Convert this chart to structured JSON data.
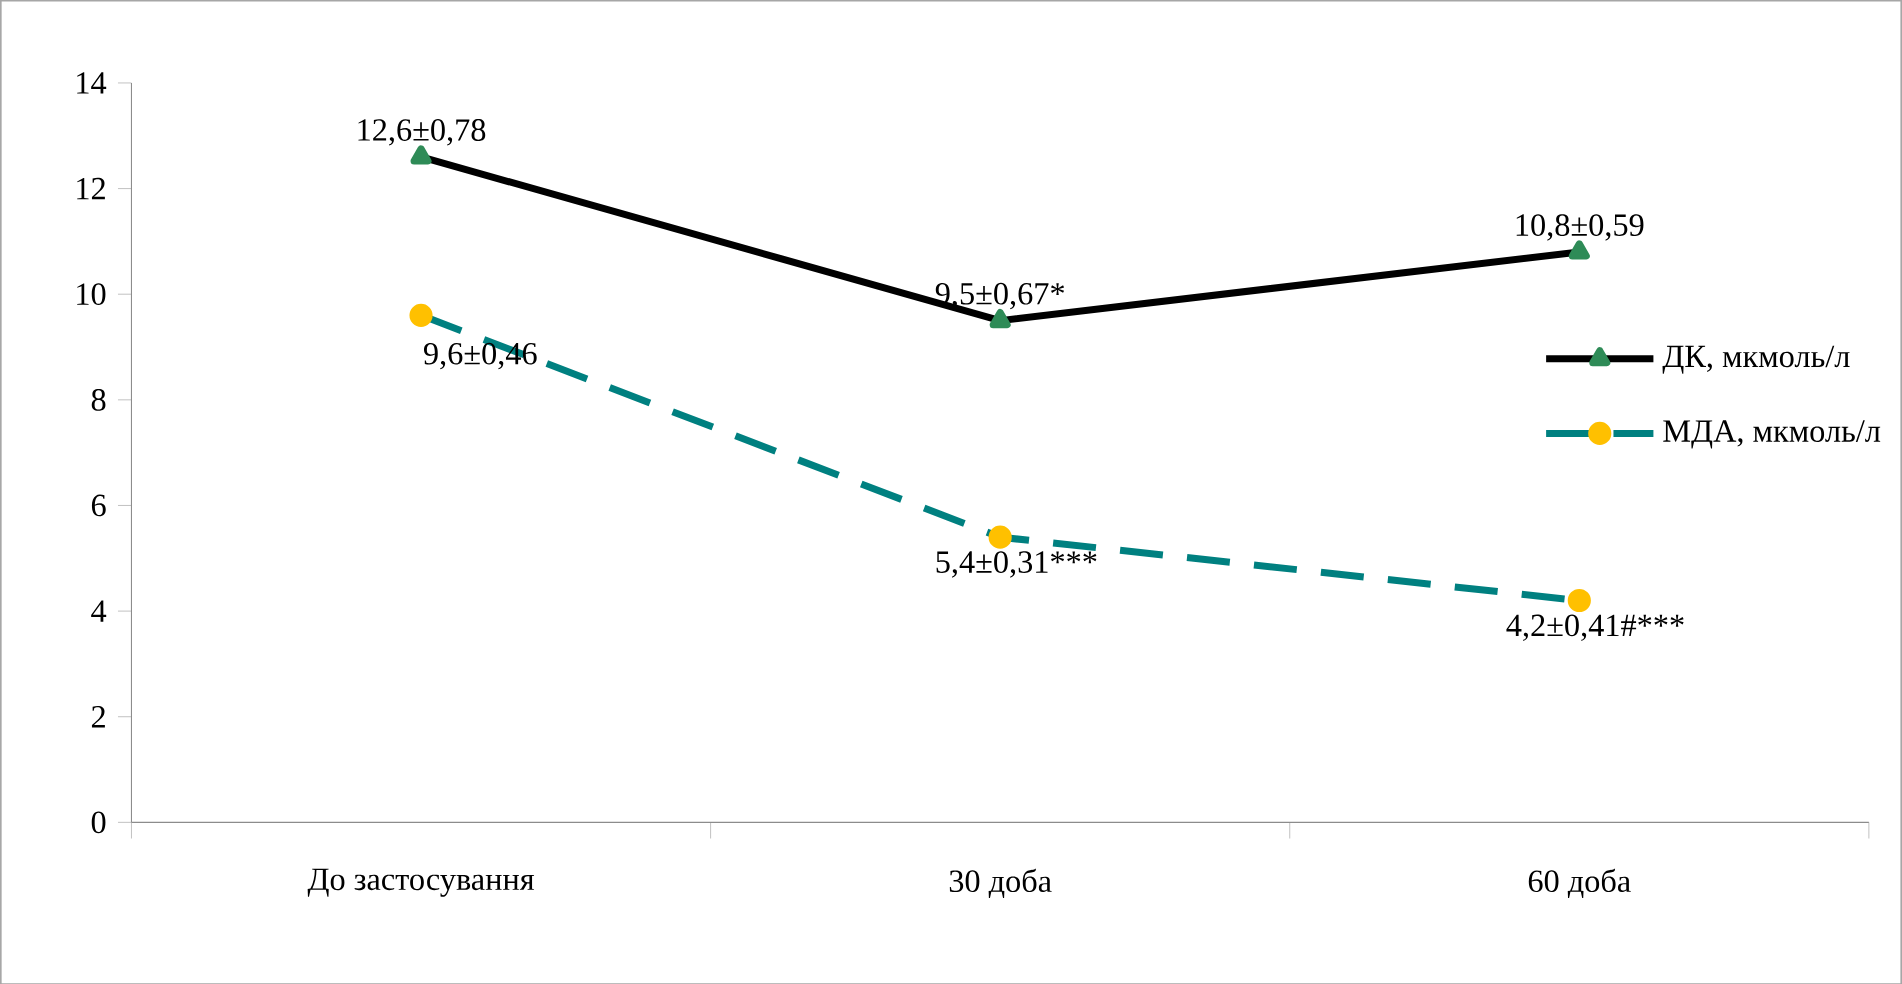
{
  "chart_data": {
    "type": "line",
    "categories": [
      "До застосування",
      "30 доба",
      "60 доба"
    ],
    "series": [
      {
        "name": "ДК, мкмоль/л",
        "color": "#000000",
        "colors": [
          "#2e8b57",
          "#2e8b57",
          "#2e8b57"
        ],
        "marker": "triangle",
        "line_style": "solid",
        "values": [
          12.6,
          9.5,
          10.8
        ],
        "value_labels": [
          "12,6±0,78",
          "9,5±0,67*",
          "10,8±0,59"
        ]
      },
      {
        "name": "МДА, мкмоль/л",
        "color": "#008080",
        "colors": [
          "#ffc000",
          "#ffc000",
          "#ffc000"
        ],
        "marker": "circle",
        "line_style": "dashed",
        "values": [
          9.6,
          5.4,
          4.2
        ],
        "value_labels": [
          "9,6±0,46",
          "5,4±0,31***",
          "4,2±0,41#***"
        ]
      }
    ],
    "ylim": [
      0,
      14
    ],
    "yticks": [
      0,
      2,
      4,
      6,
      8,
      10,
      12,
      14
    ],
    "grid": false,
    "legend": "right"
  }
}
